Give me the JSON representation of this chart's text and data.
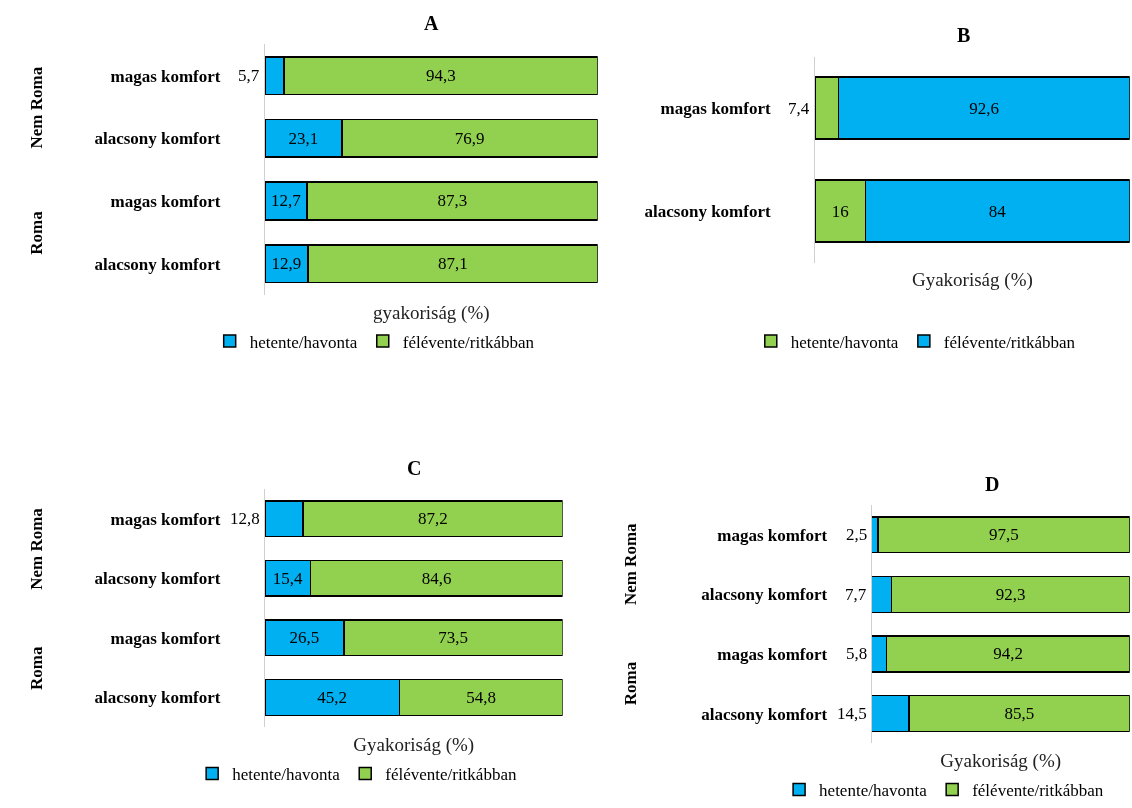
{
  "chart_data": [
    {
      "type": "bar",
      "orientation": "horizontal",
      "stacked": true,
      "title": "A",
      "xlabel": "gyakoriság (%)",
      "legend": "bottom",
      "tick_labels": "y",
      "categories": [
        "magas komfort",
        "alacsony komfort",
        "magas komfort",
        "alacsony komfort"
      ],
      "annotations": [
        "Nem Roma",
        "Roma"
      ],
      "series": [
        {
          "name": "hetente/havonta",
          "color": "#00b0f0",
          "values": [
            5.7,
            23.1,
            12.7,
            12.9
          ],
          "value_labels": [
            "5,7",
            "23,1",
            "12,7",
            "12,9"
          ]
        },
        {
          "name": "félévente/ritkábban",
          "color": "#92d050",
          "values": [
            94.3,
            76.9,
            87.3,
            87.1
          ],
          "value_labels": [
            "94,3",
            "76,9",
            "87,3",
            "87,1"
          ]
        }
      ]
    },
    {
      "type": "bar",
      "orientation": "horizontal",
      "stacked": true,
      "title": "B",
      "xlabel": "Gyakoriság (%)",
      "legend": "bottom",
      "tick_labels": "y",
      "categories": [
        "magas komfort",
        "alacsony komfort"
      ],
      "series": [
        {
          "name": "hetente/havonta",
          "color": "#92d050",
          "values": [
            7.4,
            16
          ],
          "value_labels": [
            "7,4",
            "16"
          ]
        },
        {
          "name": "félévente/ritkábban",
          "color": "#00b0f0",
          "values": [
            92.6,
            84
          ],
          "value_labels": [
            "92,6",
            "84"
          ]
        }
      ]
    },
    {
      "type": "bar",
      "orientation": "horizontal",
      "stacked": true,
      "title": "C",
      "xlabel": "Gyakoriság (%)",
      "legend": "bottom",
      "tick_labels": "y",
      "categories": [
        "magas komfort",
        "alacsony komfort",
        "magas komfort",
        "alacsony komfort"
      ],
      "annotations": [
        "Nem Roma",
        "Roma"
      ],
      "series": [
        {
          "name": "hetente/havonta",
          "color": "#00b0f0",
          "values": [
            12.8,
            15.4,
            26.5,
            45.2
          ],
          "value_labels": [
            "12,8",
            "15,4",
            "26,5",
            "45,2"
          ]
        },
        {
          "name": "félévente/ritkábban",
          "color": "#92d050",
          "values": [
            87.2,
            84.6,
            73.5,
            54.8
          ],
          "value_labels": [
            "87,2",
            "84,6",
            "73,5",
            "54,8"
          ]
        }
      ]
    },
    {
      "type": "bar",
      "orientation": "horizontal",
      "stacked": true,
      "title": "D",
      "xlabel": "Gyakoriság (%)",
      "legend": "bottom",
      "tick_labels": "y",
      "categories": [
        "magas komfort",
        "alacsony komfort",
        "magas komfort",
        "alacsony komfort"
      ],
      "annotations": [
        "Nem Roma",
        "Roma"
      ],
      "series": [
        {
          "name": "hetente/havonta",
          "color": "#00b0f0",
          "values": [
            2.5,
            7.7,
            5.8,
            14.5
          ],
          "value_labels": [
            "2,5",
            "7,7",
            "5,8",
            "14,5"
          ]
        },
        {
          "name": "félévente/ritkábban",
          "color": "#92d050",
          "values": [
            97.5,
            92.3,
            94.2,
            85.5
          ],
          "value_labels": [
            "97,5",
            "92,3",
            "94,2",
            "85,5"
          ]
        }
      ]
    }
  ]
}
